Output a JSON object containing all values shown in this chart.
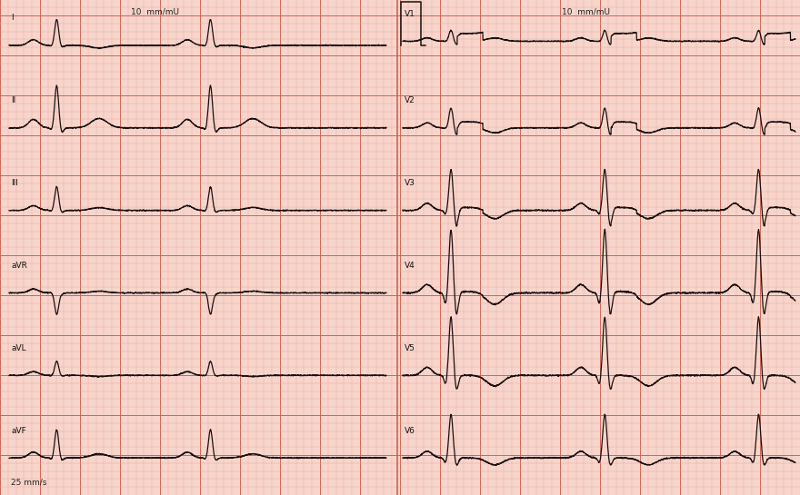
{
  "bg_color": "#f7d5cc",
  "minor_grid_color": "#e8a898",
  "major_grid_color": "#cc6655",
  "ecg_color": "#1a1010",
  "ecg_lw": 0.9,
  "label_color": "#111111",
  "text_color": "#222222",
  "fig_w": 8.8,
  "fig_h": 5.45,
  "dpi": 100,
  "left_leads": [
    "I",
    "II",
    "III",
    "aVR",
    "aVL",
    "aVF"
  ],
  "right_leads": [
    "V1",
    "V2",
    "V3",
    "V4",
    "V5",
    "V6"
  ],
  "cal_text": "10  mm/mU",
  "speed_text": "25 mm/s"
}
